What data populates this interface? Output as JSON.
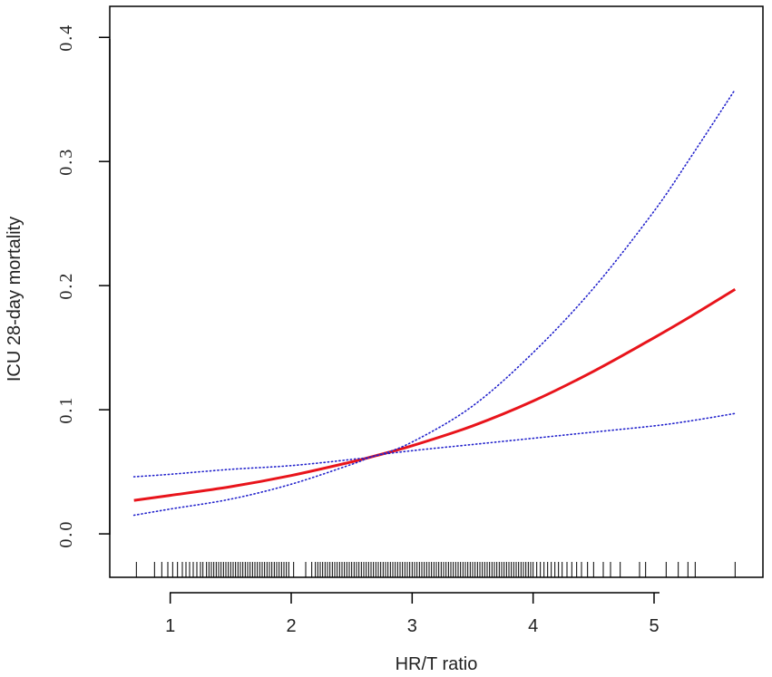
{
  "chart_data": {
    "type": "line",
    "xlabel": "HR/T ratio",
    "ylabel": "ICU 28-day mortality",
    "xlim": [
      0.5,
      5.9
    ],
    "ylim": [
      -0.035,
      0.425
    ],
    "x_ticks": [
      1,
      2,
      3,
      4,
      5
    ],
    "x_tick_labels": [
      "1",
      "2",
      "3",
      "4",
      "5"
    ],
    "y_ticks": [
      0.0,
      0.1,
      0.2,
      0.3,
      0.4
    ],
    "y_tick_labels": [
      "0.0",
      "0.1",
      "0.2",
      "0.3",
      "0.4"
    ],
    "grid": false,
    "legend": "none",
    "series": [
      {
        "role": "estimate",
        "color": "#e8141b",
        "style": "solid",
        "x": [
          0.7,
          1.0,
          1.5,
          2.0,
          2.5,
          2.7,
          3.0,
          3.5,
          4.0,
          4.5,
          5.0,
          5.3,
          5.67
        ],
        "y": [
          0.027,
          0.031,
          0.038,
          0.047,
          0.058,
          0.063,
          0.071,
          0.087,
          0.107,
          0.131,
          0.158,
          0.175,
          0.197
        ]
      },
      {
        "role": "upper-ci",
        "color": "#2222cc",
        "style": "dotted",
        "x": [
          0.7,
          1.0,
          1.5,
          2.0,
          2.5,
          2.7,
          3.0,
          3.5,
          4.0,
          4.5,
          5.0,
          5.3,
          5.67
        ],
        "y": [
          0.046,
          0.048,
          0.052,
          0.055,
          0.06,
          0.063,
          0.074,
          0.103,
          0.146,
          0.198,
          0.26,
          0.303,
          0.358
        ]
      },
      {
        "role": "lower-ci",
        "color": "#2222cc",
        "style": "dotted",
        "x": [
          0.7,
          1.0,
          1.5,
          2.0,
          2.5,
          2.7,
          3.0,
          3.5,
          4.0,
          4.5,
          5.0,
          5.3,
          5.67
        ],
        "y": [
          0.015,
          0.02,
          0.028,
          0.04,
          0.056,
          0.063,
          0.067,
          0.072,
          0.077,
          0.082,
          0.087,
          0.091,
          0.097
        ]
      }
    ],
    "rug": [
      0.72,
      0.87,
      0.93,
      0.98,
      1.02,
      1.06,
      1.1,
      1.13,
      1.16,
      1.19,
      1.22,
      1.25,
      1.27,
      1.3,
      1.32,
      1.34,
      1.36,
      1.38,
      1.4,
      1.42,
      1.44,
      1.46,
      1.48,
      1.5,
      1.52,
      1.54,
      1.56,
      1.58,
      1.6,
      1.62,
      1.64,
      1.66,
      1.68,
      1.7,
      1.72,
      1.74,
      1.76,
      1.78,
      1.8,
      1.82,
      1.84,
      1.86,
      1.88,
      1.9,
      1.92,
      1.94,
      1.96,
      1.98,
      2.02,
      2.12,
      2.17,
      2.2,
      2.22,
      2.24,
      2.26,
      2.28,
      2.3,
      2.32,
      2.34,
      2.36,
      2.38,
      2.4,
      2.42,
      2.44,
      2.46,
      2.48,
      2.5,
      2.52,
      2.54,
      2.56,
      2.58,
      2.6,
      2.62,
      2.64,
      2.66,
      2.68,
      2.7,
      2.72,
      2.74,
      2.76,
      2.78,
      2.8,
      2.82,
      2.84,
      2.86,
      2.88,
      2.9,
      2.92,
      2.94,
      2.96,
      2.98,
      3.0,
      3.02,
      3.04,
      3.06,
      3.08,
      3.1,
      3.12,
      3.14,
      3.16,
      3.18,
      3.2,
      3.22,
      3.24,
      3.26,
      3.28,
      3.3,
      3.32,
      3.34,
      3.36,
      3.38,
      3.4,
      3.42,
      3.44,
      3.46,
      3.48,
      3.5,
      3.52,
      3.54,
      3.56,
      3.58,
      3.6,
      3.62,
      3.64,
      3.66,
      3.68,
      3.7,
      3.72,
      3.74,
      3.76,
      3.78,
      3.8,
      3.82,
      3.84,
      3.86,
      3.88,
      3.9,
      3.92,
      3.94,
      3.96,
      3.98,
      4.0,
      4.03,
      4.06,
      4.09,
      4.12,
      4.15,
      4.18,
      4.21,
      4.24,
      4.28,
      4.32,
      4.36,
      4.4,
      4.45,
      4.5,
      4.58,
      4.64,
      4.72,
      4.88,
      4.93,
      5.1,
      5.2,
      5.28,
      5.34,
      5.67
    ]
  }
}
